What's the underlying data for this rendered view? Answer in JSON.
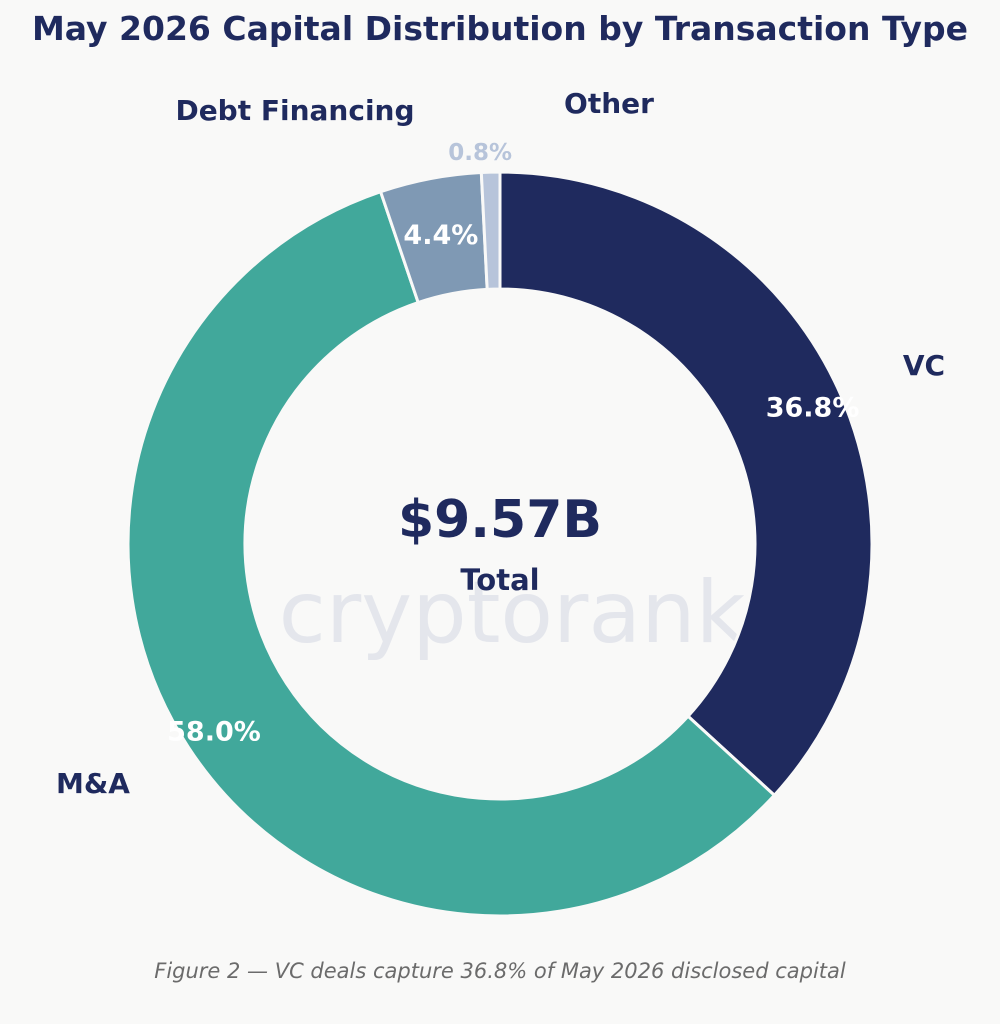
{
  "chart_data": {
    "type": "pie",
    "title": "May 2026 Capital Distribution by Transaction Type",
    "center_value": "$9.57B",
    "center_label": "Total",
    "caption": "Figure 2 — VC deals capture 36.8% of May 2026 disclosed capital",
    "watermark": "cryptorank",
    "slices": [
      {
        "name": "VC",
        "value": 36.8,
        "pct_label": "36.8%",
        "color": "#1f2a5e"
      },
      {
        "name": "M&A",
        "value": 58.0,
        "pct_label": "58.0%",
        "color": "#41a89b"
      },
      {
        "name": "Debt Financing",
        "value": 4.4,
        "pct_label": "4.4%",
        "color": "#7f99b4"
      },
      {
        "name": "Other",
        "value": 0.8,
        "pct_label": "0.8%",
        "color": "#b7c4da"
      }
    ]
  }
}
